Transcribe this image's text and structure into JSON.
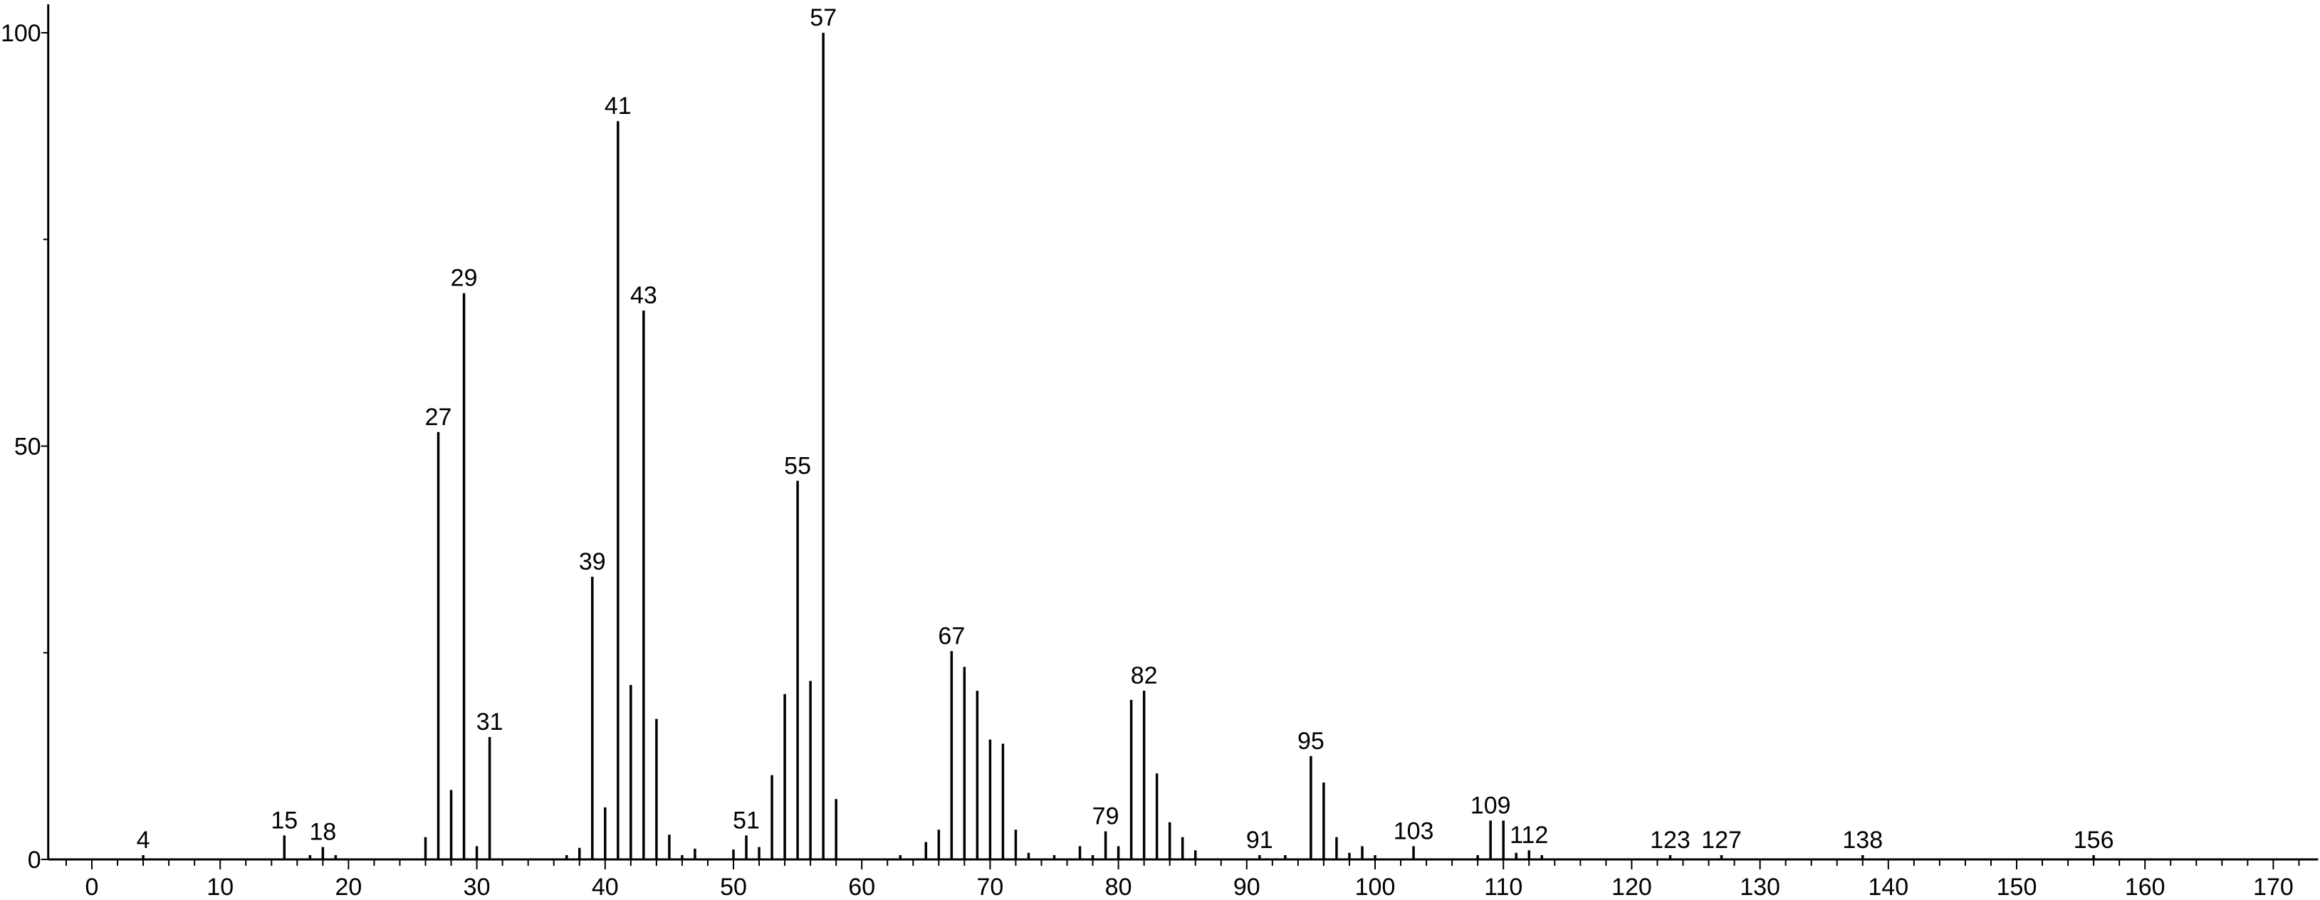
{
  "chart_data": {
    "type": "bar",
    "title": "",
    "xlabel": "",
    "ylabel": "",
    "xlim": [
      -3.4,
      173.5
    ],
    "ylim": [
      0,
      100
    ],
    "x_ticks": [
      0,
      10,
      20,
      30,
      40,
      50,
      60,
      70,
      80,
      90,
      100,
      110,
      120,
      130,
      140,
      150,
      160,
      170
    ],
    "x_minor_step": 2,
    "y_ticks": [
      0,
      50,
      100
    ],
    "y_minor_ticks": [
      25,
      75
    ],
    "grid": false,
    "color": "#000000",
    "peaks": [
      {
        "x": 4,
        "y": 0.5,
        "label": "4"
      },
      {
        "x": 15,
        "y": 2.9,
        "label": "15"
      },
      {
        "x": 17,
        "y": 0.5
      },
      {
        "x": 18,
        "y": 1.5,
        "label": "18"
      },
      {
        "x": 19,
        "y": 0.5
      },
      {
        "x": 26,
        "y": 2.7
      },
      {
        "x": 27,
        "y": 51.7,
        "label": "27"
      },
      {
        "x": 28,
        "y": 8.4
      },
      {
        "x": 29,
        "y": 68.5,
        "label": "29"
      },
      {
        "x": 30,
        "y": 1.6
      },
      {
        "x": 31,
        "y": 14.8,
        "label": "31"
      },
      {
        "x": 37,
        "y": 0.3
      },
      {
        "x": 38,
        "y": 1.4
      },
      {
        "x": 39,
        "y": 34.2,
        "label": "39"
      },
      {
        "x": 40,
        "y": 6.3
      },
      {
        "x": 41,
        "y": 89.3,
        "label": "41"
      },
      {
        "x": 42,
        "y": 21.1
      },
      {
        "x": 43,
        "y": 66.4,
        "label": "43"
      },
      {
        "x": 44,
        "y": 17.0
      },
      {
        "x": 45,
        "y": 3.0
      },
      {
        "x": 46,
        "y": 0.4
      },
      {
        "x": 47,
        "y": 1.3
      },
      {
        "x": 50,
        "y": 1.2
      },
      {
        "x": 51,
        "y": 2.9,
        "label": "51"
      },
      {
        "x": 52,
        "y": 1.5
      },
      {
        "x": 53,
        "y": 10.2
      },
      {
        "x": 54,
        "y": 20.0
      },
      {
        "x": 55,
        "y": 45.8,
        "label": "55"
      },
      {
        "x": 56,
        "y": 21.6
      },
      {
        "x": 57,
        "y": 100,
        "label": "57"
      },
      {
        "x": 58,
        "y": 7.3
      },
      {
        "x": 63,
        "y": 0.4
      },
      {
        "x": 65,
        "y": 2.1
      },
      {
        "x": 66,
        "y": 3.6
      },
      {
        "x": 67,
        "y": 25.2,
        "label": "67"
      },
      {
        "x": 68,
        "y": 23.3
      },
      {
        "x": 69,
        "y": 20.4
      },
      {
        "x": 70,
        "y": 14.5
      },
      {
        "x": 71,
        "y": 14.0
      },
      {
        "x": 72,
        "y": 3.6
      },
      {
        "x": 73,
        "y": 0.8
      },
      {
        "x": 75,
        "y": 0.4
      },
      {
        "x": 77,
        "y": 1.6
      },
      {
        "x": 78,
        "y": 0.4
      },
      {
        "x": 79,
        "y": 3.4,
        "label": "79"
      },
      {
        "x": 80,
        "y": 1.6
      },
      {
        "x": 81,
        "y": 19.3
      },
      {
        "x": 82,
        "y": 20.4,
        "label": "82"
      },
      {
        "x": 83,
        "y": 10.4
      },
      {
        "x": 84,
        "y": 4.5
      },
      {
        "x": 85,
        "y": 2.7
      },
      {
        "x": 86,
        "y": 1.1
      },
      {
        "x": 91,
        "y": 0.4,
        "label": "91"
      },
      {
        "x": 93,
        "y": 0.4
      },
      {
        "x": 95,
        "y": 12.5,
        "label": "95"
      },
      {
        "x": 96,
        "y": 9.3
      },
      {
        "x": 97,
        "y": 2.7
      },
      {
        "x": 98,
        "y": 0.8
      },
      {
        "x": 99,
        "y": 1.6
      },
      {
        "x": 100,
        "y": 0.4
      },
      {
        "x": 103,
        "y": 1.6,
        "label": "103"
      },
      {
        "x": 108,
        "y": 0.4
      },
      {
        "x": 109,
        "y": 4.7,
        "label": "109"
      },
      {
        "x": 110,
        "y": 4.7
      },
      {
        "x": 111,
        "y": 0.8
      },
      {
        "x": 112,
        "y": 1.1,
        "label": "112"
      },
      {
        "x": 113,
        "y": 0.4
      },
      {
        "x": 123,
        "y": 0.4,
        "label": "123"
      },
      {
        "x": 127,
        "y": 0.4,
        "label": "127"
      },
      {
        "x": 138,
        "y": 0.4,
        "label": "138"
      },
      {
        "x": 156,
        "y": 0.3,
        "label": "156"
      }
    ]
  }
}
